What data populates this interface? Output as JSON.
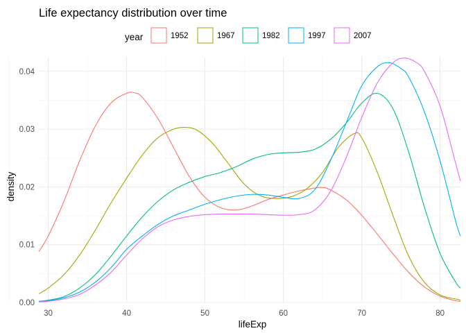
{
  "chart_data": {
    "type": "line",
    "title": "Life expectancy distribution over time",
    "xlabel": "lifeExp",
    "ylabel": "density",
    "xlim": [
      28.8,
      82.6
    ],
    "ylim": [
      0,
      0.0425
    ],
    "x_ticks": [
      30,
      40,
      50,
      60,
      70,
      80
    ],
    "y_ticks": [
      0.0,
      0.01,
      0.02,
      0.03,
      0.04
    ],
    "y_tick_labels": [
      "0.00",
      "0.01",
      "0.02",
      "0.03",
      "0.04"
    ],
    "legend_title": "year",
    "legend_position": "top",
    "grid": true,
    "series": [
      {
        "name": "1952",
        "color": "#F8766D",
        "x": [
          28.8,
          30,
          32,
          34,
          36,
          38,
          40,
          41,
          42,
          44,
          46,
          48,
          50,
          52,
          54,
          56,
          58,
          60,
          62,
          64,
          65,
          66,
          68,
          70,
          72,
          74,
          76,
          78,
          80,
          82,
          82.6
        ],
        "y": [
          0.0088,
          0.0115,
          0.0175,
          0.0245,
          0.0305,
          0.0345,
          0.0362,
          0.0363,
          0.0355,
          0.0318,
          0.0268,
          0.0218,
          0.0182,
          0.0164,
          0.016,
          0.0167,
          0.0178,
          0.0186,
          0.0193,
          0.0198,
          0.0199,
          0.0195,
          0.0178,
          0.0151,
          0.0118,
          0.0084,
          0.0052,
          0.0027,
          0.0011,
          0.0003,
          0.0002
        ]
      },
      {
        "name": "1967",
        "color": "#A3A500",
        "x": [
          28.8,
          30,
          32,
          34,
          36,
          38,
          40,
          42,
          44,
          46,
          47.5,
          49,
          51,
          53,
          55,
          57,
          59,
          61,
          63,
          65,
          67,
          69,
          70,
          72,
          74,
          76,
          78,
          80,
          82,
          82.6
        ],
        "y": [
          0.0015,
          0.0025,
          0.0048,
          0.0082,
          0.0125,
          0.0172,
          0.0215,
          0.0255,
          0.0285,
          0.03,
          0.0303,
          0.0298,
          0.0275,
          0.024,
          0.0205,
          0.0185,
          0.018,
          0.0183,
          0.0197,
          0.0225,
          0.0268,
          0.0292,
          0.0285,
          0.0225,
          0.015,
          0.008,
          0.0035,
          0.0013,
          0.0006,
          0.0004
        ]
      },
      {
        "name": "1982",
        "color": "#00BF7D",
        "x": [
          28.8,
          30,
          32,
          34,
          36,
          38,
          40,
          42,
          44,
          46,
          48,
          50,
          52,
          54,
          56,
          58,
          60,
          62,
          64,
          66,
          68,
          70,
          72,
          74,
          76,
          78,
          80,
          82,
          82.6
        ],
        "y": [
          0.0002,
          0.0004,
          0.001,
          0.0025,
          0.0048,
          0.008,
          0.0115,
          0.0148,
          0.0175,
          0.0195,
          0.0208,
          0.0218,
          0.0225,
          0.0235,
          0.0248,
          0.0256,
          0.0259,
          0.026,
          0.0265,
          0.0282,
          0.031,
          0.0345,
          0.0362,
          0.0335,
          0.026,
          0.0165,
          0.0085,
          0.0035,
          0.0025
        ]
      },
      {
        "name": "1997",
        "color": "#00B0F6",
        "x": [
          28.8,
          30,
          32,
          34,
          36,
          38,
          40,
          42,
          44,
          46,
          48,
          50,
          52,
          54,
          56,
          58,
          60,
          62,
          64,
          66,
          68,
          70,
          72,
          73.5,
          75,
          76,
          78,
          80,
          82,
          82.6
        ],
        "y": [
          0.0002,
          0.0003,
          0.0008,
          0.0018,
          0.0035,
          0.006,
          0.0092,
          0.0115,
          0.0135,
          0.015,
          0.016,
          0.017,
          0.0178,
          0.0184,
          0.0187,
          0.0186,
          0.0182,
          0.018,
          0.0195,
          0.0245,
          0.031,
          0.0375,
          0.0408,
          0.0415,
          0.0405,
          0.039,
          0.033,
          0.0245,
          0.014,
          0.0115
        ]
      },
      {
        "name": "2007",
        "color": "#E76BF3",
        "x": [
          28.8,
          30,
          32,
          34,
          36,
          38,
          40,
          42,
          44,
          46,
          48,
          50,
          52,
          54,
          56,
          58,
          60,
          62,
          64,
          66,
          68,
          70,
          72,
          74,
          75.5,
          77,
          78,
          80,
          82,
          82.6
        ],
        "y": [
          0.0001,
          0.0002,
          0.0006,
          0.0014,
          0.003,
          0.0052,
          0.0082,
          0.011,
          0.0131,
          0.0143,
          0.0149,
          0.0152,
          0.0153,
          0.0153,
          0.0153,
          0.0152,
          0.0151,
          0.0152,
          0.016,
          0.0192,
          0.025,
          0.032,
          0.038,
          0.0415,
          0.0423,
          0.0415,
          0.04,
          0.034,
          0.024,
          0.021
        ]
      }
    ]
  }
}
